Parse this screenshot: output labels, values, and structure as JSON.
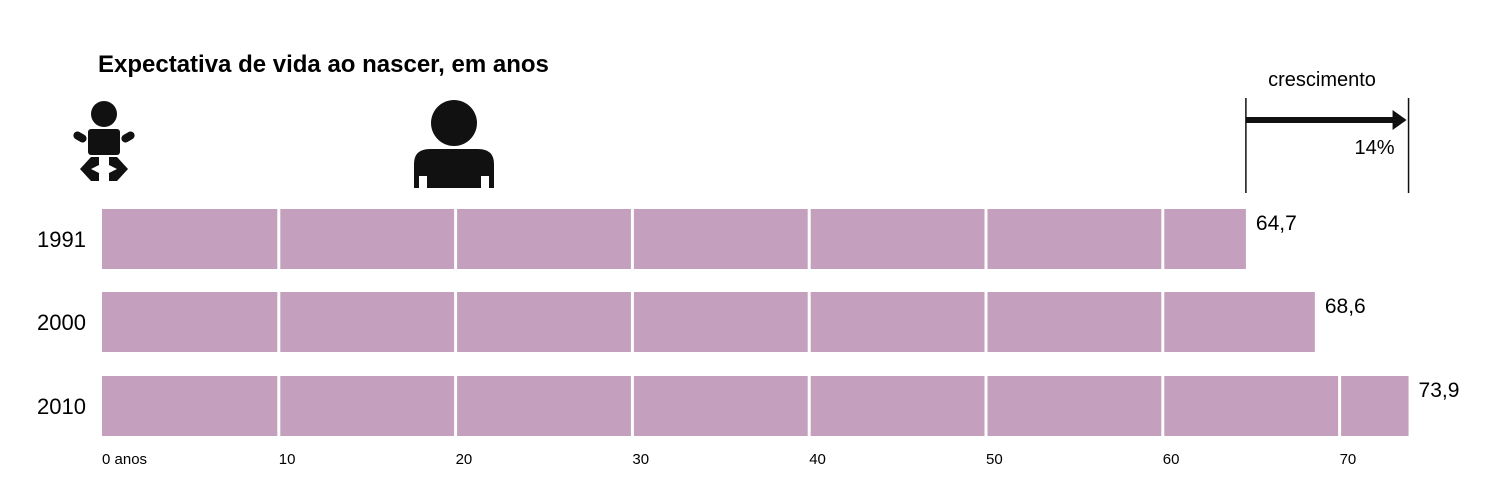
{
  "chart_data": {
    "type": "bar",
    "title": "Expectativa de vida ao nascer, em anos",
    "categories": [
      "1991",
      "2000",
      "2010"
    ],
    "values": [
      64.7,
      68.6,
      73.9
    ],
    "value_labels": [
      "64,7",
      "68,6",
      "73,9"
    ],
    "xlim": [
      0,
      73.9
    ],
    "x_ticks": [
      0,
      10,
      20,
      30,
      40,
      50,
      60,
      70
    ],
    "x_tick_labels": [
      "0 anos",
      "10",
      "20",
      "30",
      "40",
      "50",
      "60",
      "70"
    ],
    "bar_color": "#c49fbe",
    "segment_divider_color": "#ffffff",
    "icons": [
      "baby-icon",
      "adult-icon"
    ],
    "growth": {
      "label": "crescimento",
      "value": "14%",
      "from": 64.7,
      "to": 73.9
    }
  }
}
